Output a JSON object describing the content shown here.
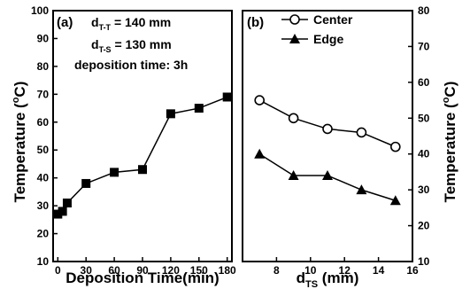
{
  "chart_data": [
    {
      "type": "line",
      "panel_label": "(a)",
      "annotations": {
        "line1": "d",
        "line1_sub": "T-T",
        "line1_rest": " = 140 mm",
        "line2": "d",
        "line2_sub": "T-S",
        "line2_rest": " = 130 mm",
        "line3": "deposition time: 3h"
      },
      "xlabel": "Deposition Time(min)",
      "ylabel": "Temperature (°C)",
      "ylabel_main": "Temperature (",
      "ylabel_sup": "o",
      "ylabel_end": "C)",
      "xlim": [
        -5,
        185
      ],
      "ylim": [
        10,
        100
      ],
      "xticks": [
        0,
        30,
        60,
        90,
        120,
        150,
        180
      ],
      "yticks": [
        10,
        20,
        30,
        40,
        50,
        60,
        70,
        80,
        90,
        100
      ],
      "series": [
        {
          "x": [
            0,
            5,
            10,
            30,
            60,
            90,
            120,
            150,
            180
          ],
          "y": [
            27,
            28,
            31,
            38,
            42,
            43,
            63,
            65,
            69
          ],
          "marker": "filled-square"
        }
      ]
    },
    {
      "type": "line",
      "panel_label": "(b)",
      "xlabel": "d",
      "xlabel_sub": "TS",
      "xlabel_rest": " (mm)",
      "ylabel": "Temperature (°C)",
      "ylabel_main": "Temperature (",
      "ylabel_sup": "o",
      "ylabel_end": "C)",
      "xlim": [
        6,
        16
      ],
      "ylim": [
        10,
        80
      ],
      "xticks": [
        8,
        10,
        12,
        14,
        16
      ],
      "yticks": [
        10,
        20,
        30,
        40,
        50,
        60,
        70,
        80
      ],
      "yaxis_side": "right",
      "legend_position": "top-left",
      "series": [
        {
          "name": "Center",
          "x": [
            7,
            9,
            11,
            13,
            15
          ],
          "y": [
            55,
            50,
            47,
            46,
            42
          ],
          "marker": "open-circle"
        },
        {
          "name": "Edge",
          "x": [
            7,
            9,
            11,
            13,
            15
          ],
          "y": [
            40,
            34,
            34,
            30,
            27
          ],
          "marker": "filled-triangle"
        }
      ]
    }
  ]
}
